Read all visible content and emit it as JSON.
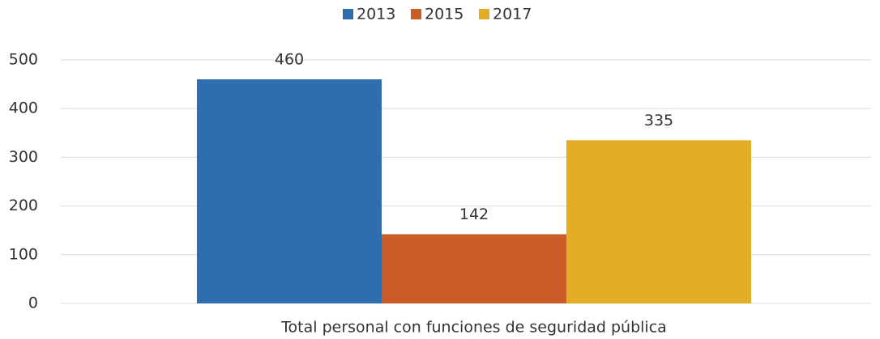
{
  "chart_data": {
    "type": "bar",
    "categories": [
      "Total personal con funciones de seguridad pública"
    ],
    "series": [
      {
        "name": "2013",
        "color": "#2f6eae",
        "values": [
          460
        ]
      },
      {
        "name": "2015",
        "color": "#c95c27",
        "values": [
          142
        ]
      },
      {
        "name": "2017",
        "color": "#e3ad24",
        "values": [
          335
        ]
      }
    ],
    "ylim": [
      0,
      500
    ],
    "yticks": [
      0,
      100,
      200,
      300,
      400,
      500
    ],
    "grid": true,
    "legend": "top"
  }
}
